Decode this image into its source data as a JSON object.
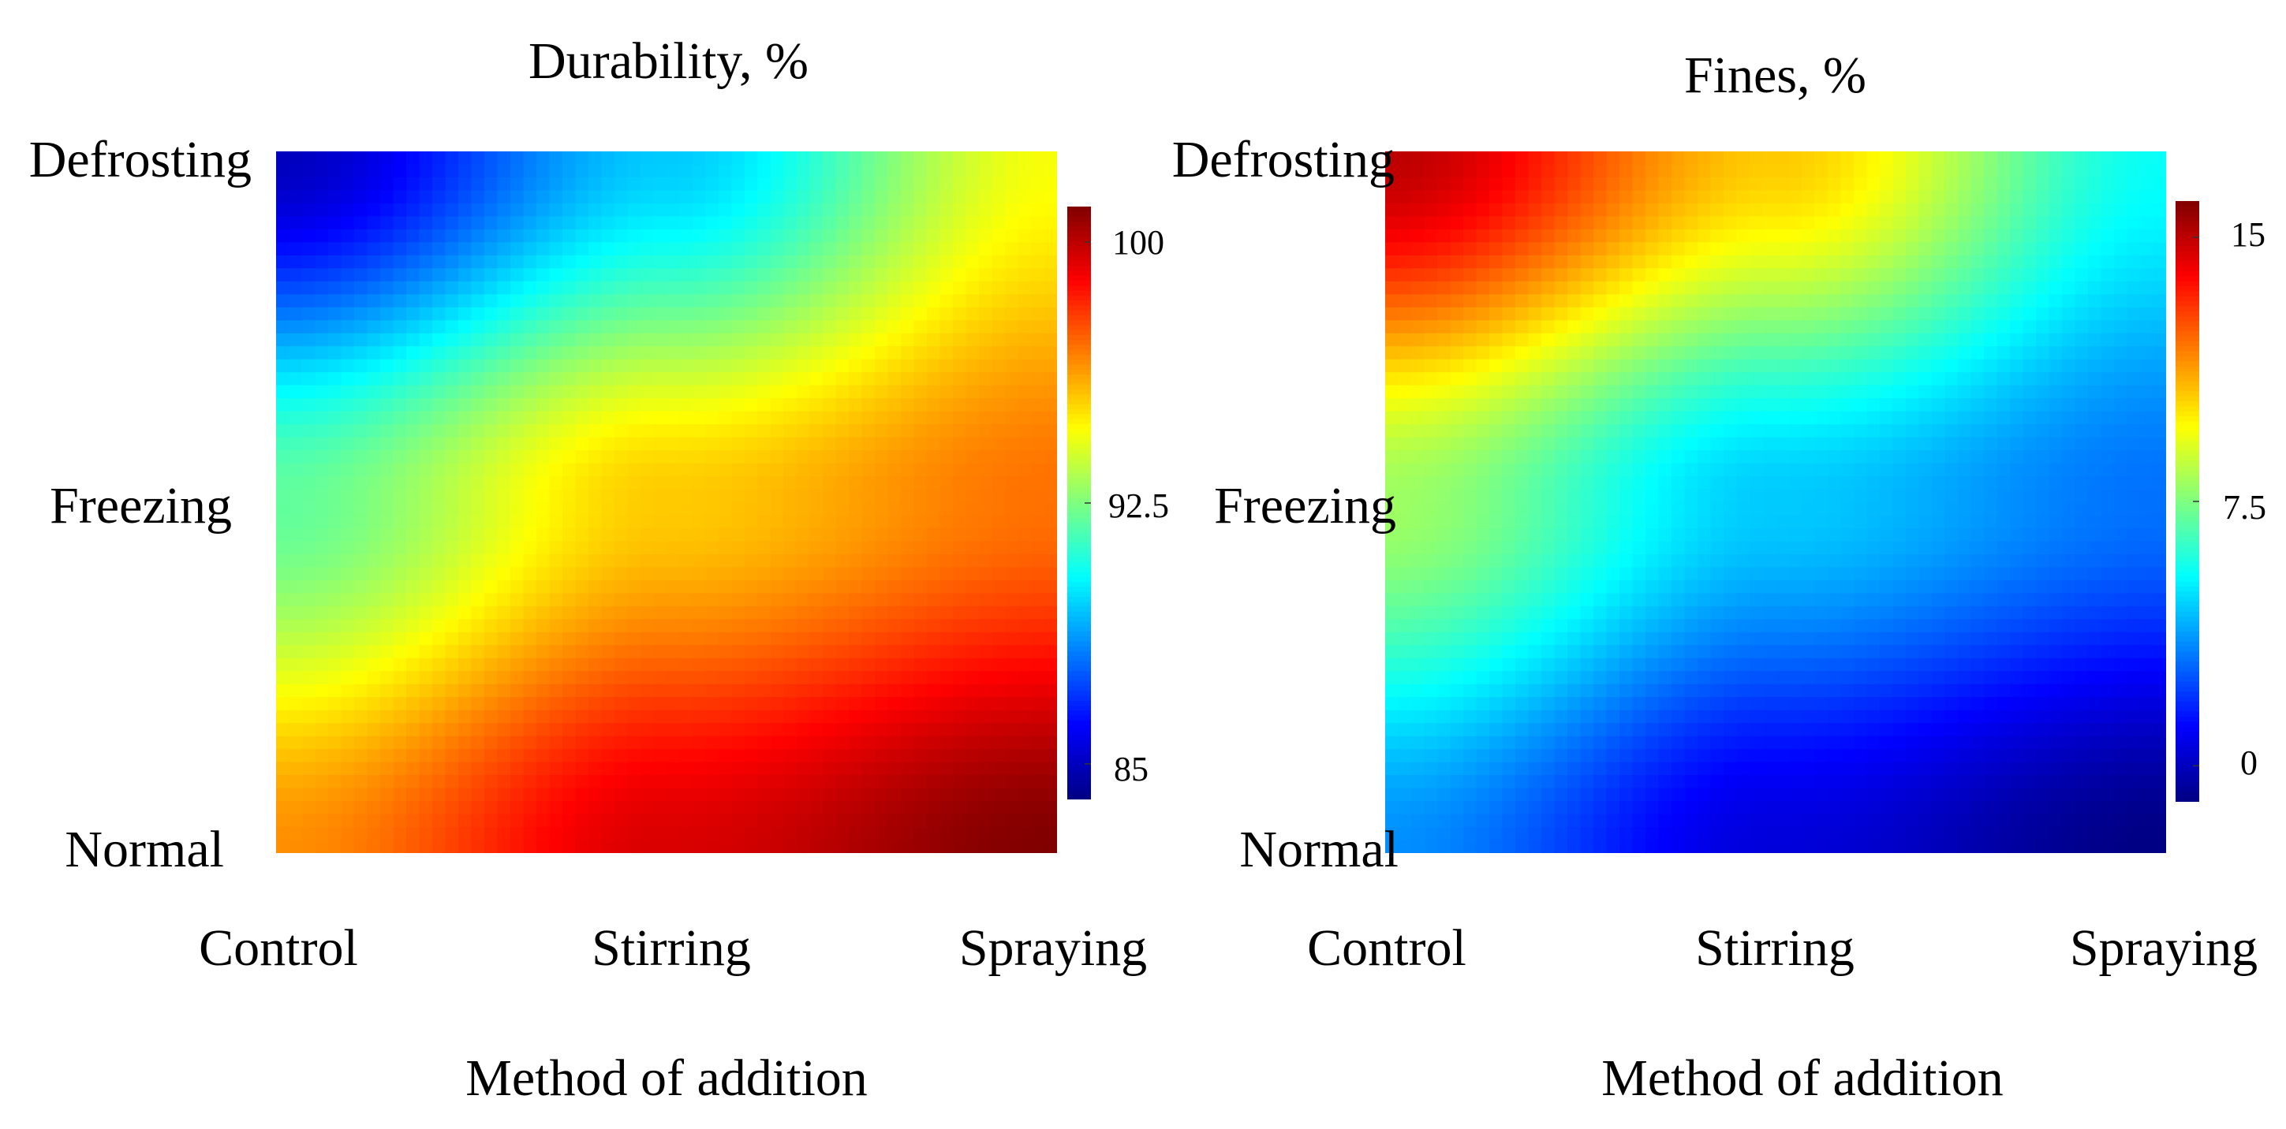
{
  "chart_data": [
    {
      "type": "heatmap",
      "title": "Durability, %",
      "xlabel": "Method of addition",
      "ylabel": "",
      "x_categories": [
        "Control",
        "Stirring",
        "Spraying"
      ],
      "y_categories": [
        "Normal",
        "Freezing",
        "Defrosting"
      ],
      "colorbar": {
        "min": 84,
        "max": 101,
        "ticks": [
          "85",
          "92.5",
          "100"
        ]
      },
      "values": [
        [
          96.5,
          99.5,
          101.0
        ],
        [
          92.0,
          95.5,
          97.0
        ],
        [
          85.0,
          89.5,
          94.5
        ]
      ],
      "colormap": "jet"
    },
    {
      "type": "heatmap",
      "title": "Fines, %",
      "xlabel": "Method of addition",
      "ylabel": "",
      "x_categories": [
        "Control",
        "Stirring",
        "Spraying"
      ],
      "y_categories": [
        "Normal",
        "Freezing",
        "Defrosting"
      ],
      "colorbar": {
        "min": -1,
        "max": 16,
        "ticks": [
          "0",
          "7.5",
          "15"
        ]
      },
      "values": [
        [
          3.5,
          0.5,
          -1.0
        ],
        [
          8.0,
          4.5,
          3.0
        ],
        [
          15.0,
          10.5,
          5.5
        ]
      ],
      "colormap": "jet"
    }
  ]
}
